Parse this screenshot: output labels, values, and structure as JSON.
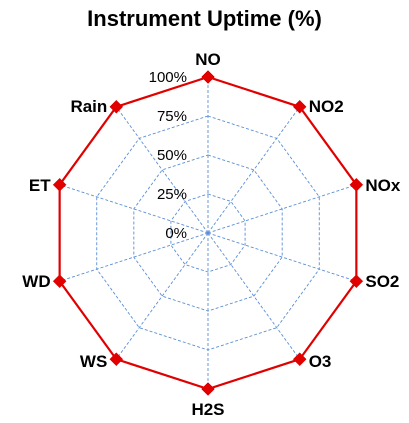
{
  "chart_data": {
    "type": "radar",
    "title": "Instrument Uptime (%)",
    "categories": [
      "NO",
      "NO2",
      "NOx",
      "SO2",
      "O3",
      "H2S",
      "WS",
      "WD",
      "ET",
      "Rain"
    ],
    "series": [
      {
        "values": [
          100,
          100,
          100,
          100,
          100,
          100,
          100,
          100,
          100,
          100
        ],
        "color": "#e00000",
        "marker": "diamond"
      }
    ],
    "radial_ticks": [
      0,
      25,
      50,
      75,
      100
    ],
    "radial_tick_labels": [
      "0%",
      "25%",
      "50%",
      "75%",
      "100%"
    ],
    "rlim": [
      0,
      100
    ],
    "grid": true,
    "grid_color": "#5b8fd6",
    "legend": "none"
  }
}
